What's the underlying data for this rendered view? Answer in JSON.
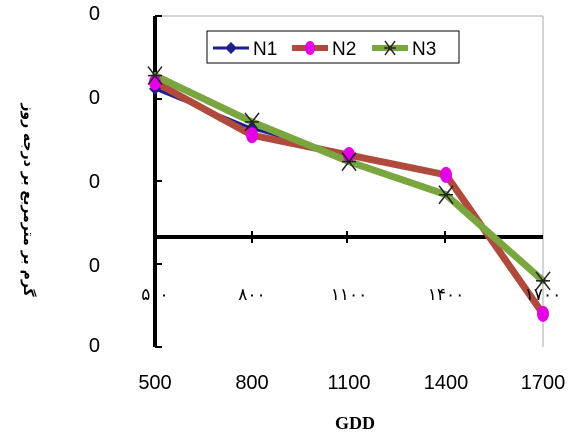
{
  "chart_data": {
    "type": "line",
    "title": "",
    "xlabel": "GDD",
    "ylabel": "گرم بر مترمربع بر درجه روز",
    "x_ticks": [
      "500",
      "800",
      "1100",
      "1400",
      "1700"
    ],
    "y_ticks": [
      "0",
      "0",
      "0",
      "0",
      "0"
    ],
    "y_range": [
      -0.3,
      0.2
    ],
    "inner_axis_labels": [
      "۵۰۰",
      "۸۰۰",
      "۱۱۰۰",
      "۱۴۰۰",
      "۱۷۰۰"
    ],
    "legend_position": "top-right",
    "series": [
      {
        "name": "N1",
        "color": "#1f1f8f",
        "marker": "diamond",
        "values": [
          0.09,
          0.03,
          -0.01,
          -0.04,
          -0.25
        ]
      },
      {
        "name": "N2",
        "color": "#b04a3c",
        "marker": "circle",
        "values": [
          0.1,
          0.02,
          -0.01,
          -0.04,
          -0.25
        ]
      },
      {
        "name": "N3",
        "color": "#7aa640",
        "marker": "asterisk",
        "values": [
          0.11,
          0.04,
          -0.02,
          -0.07,
          -0.2
        ]
      }
    ],
    "x": [
      500,
      800,
      1100,
      1400,
      1700
    ]
  }
}
